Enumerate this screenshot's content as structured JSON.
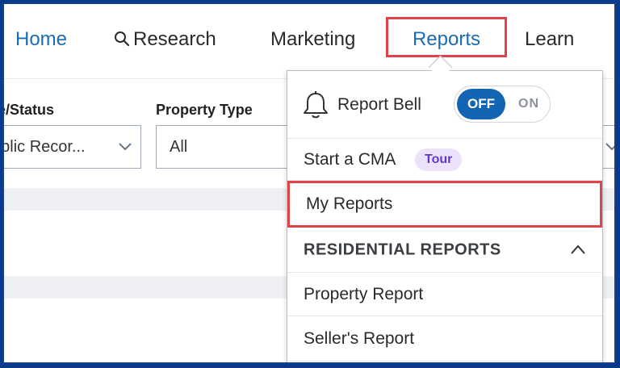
{
  "nav": {
    "home": "Home",
    "research": "Research",
    "marketing": "Marketing",
    "reports": "Reports",
    "learn": "Learn"
  },
  "filters": {
    "status_label": "e/Status",
    "status_value": "ublic Recor...",
    "property_type_label": "Property Type",
    "property_type_value": "All"
  },
  "dropdown": {
    "report_bell": "Report Bell",
    "toggle_off": "OFF",
    "toggle_on": "ON",
    "start_cma": "Start a CMA",
    "tour_badge": "Tour",
    "my_reports": "My Reports",
    "residential_header": "RESIDENTIAL REPORTS",
    "property_report": "Property Report",
    "sellers_report": "Seller's Report"
  },
  "colors": {
    "accent": "#1c6bb5",
    "highlight": "#e1434a",
    "toggle_active": "#1464b4",
    "badge_bg": "#ece3fb",
    "badge_text": "#6a36c9"
  }
}
